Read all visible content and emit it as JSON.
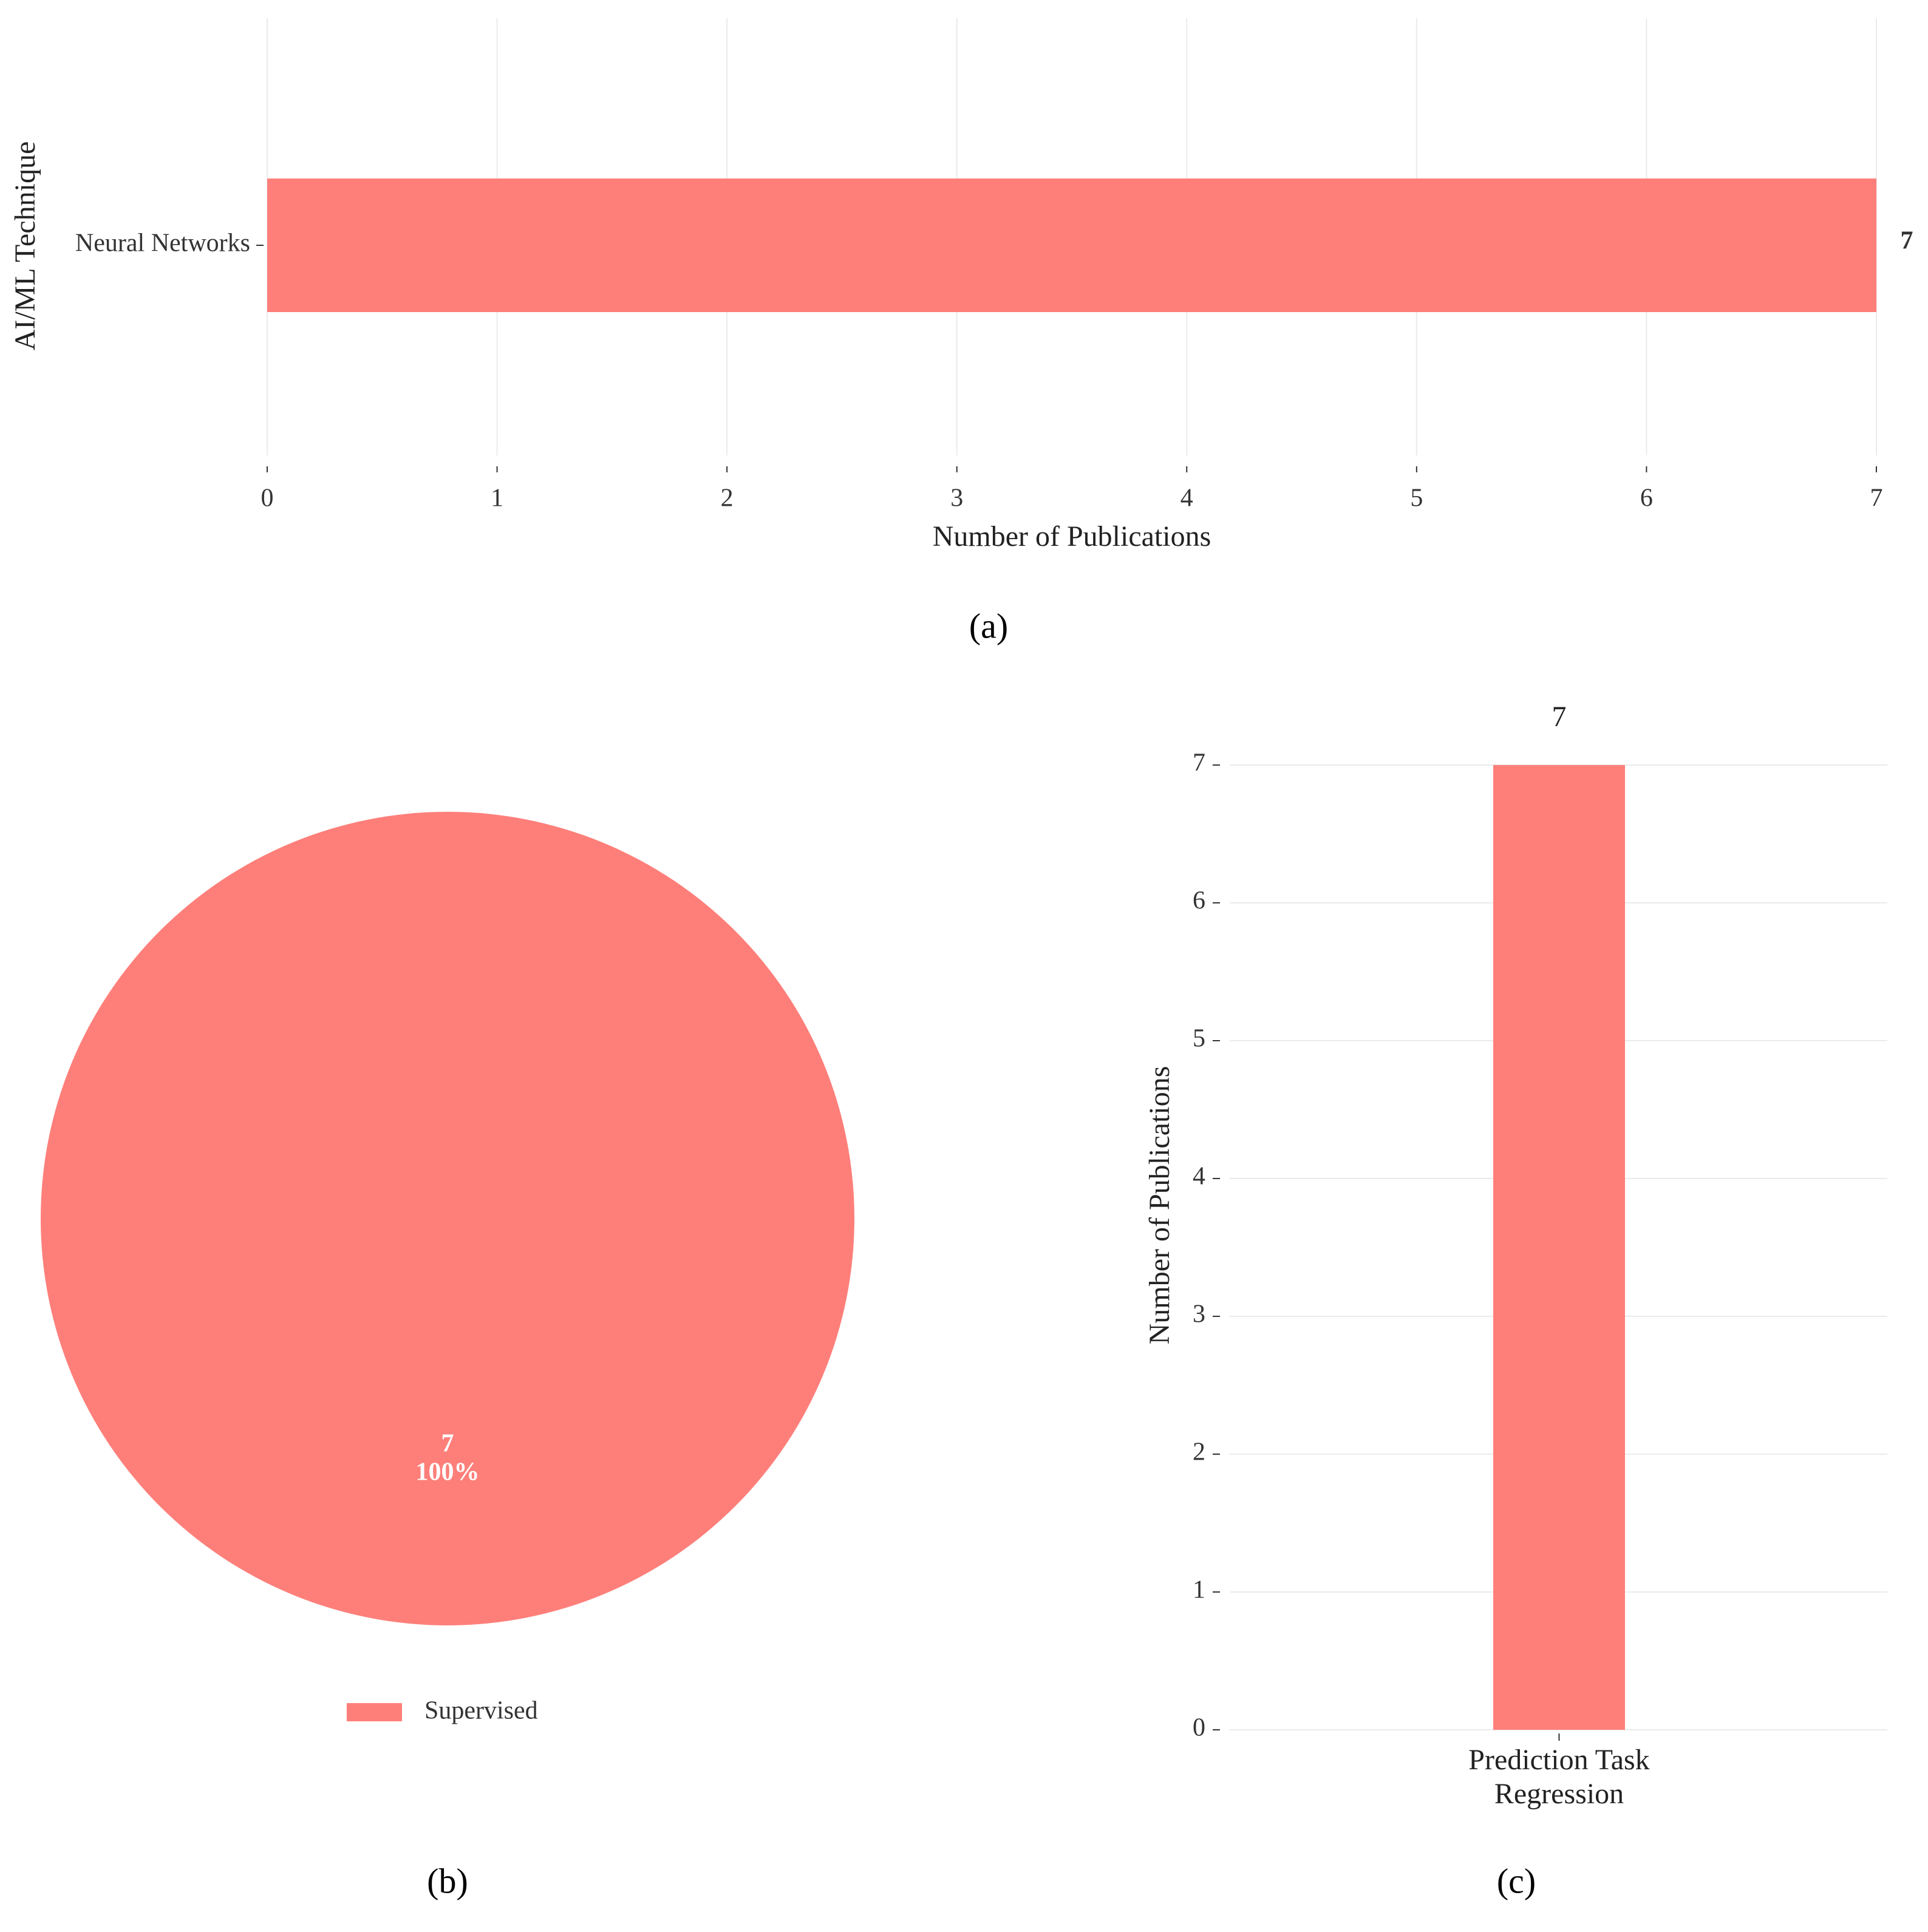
{
  "chart_data": [
    {
      "type": "bar",
      "orientation": "horizontal",
      "caption": "(a)",
      "categories": [
        "Neural Networks"
      ],
      "values": [
        7
      ],
      "color": "#fe7f7a",
      "xlabel": "Number of Publications",
      "ylabel": "AI/ML Technique",
      "xlim": [
        0,
        7
      ],
      "xticks": [
        0,
        1,
        2,
        3,
        4,
        5,
        6,
        7
      ],
      "grid": true
    },
    {
      "type": "pie",
      "caption": "(b)",
      "categories": [
        "Supervised"
      ],
      "values": [
        7
      ],
      "percent_labels": [
        "100%"
      ],
      "color": "#fe7f7a",
      "legend": "bottom"
    },
    {
      "type": "bar",
      "orientation": "vertical",
      "caption": "(c)",
      "xlabel": "Prediction Task",
      "categories": [
        "Regression"
      ],
      "values": [
        7
      ],
      "color": "#fe7f7a",
      "ylabel": "Number of Publications",
      "ylim": [
        0,
        7
      ],
      "yticks": [
        0,
        1,
        2,
        3,
        4,
        5,
        6,
        7
      ],
      "grid": true
    }
  ]
}
